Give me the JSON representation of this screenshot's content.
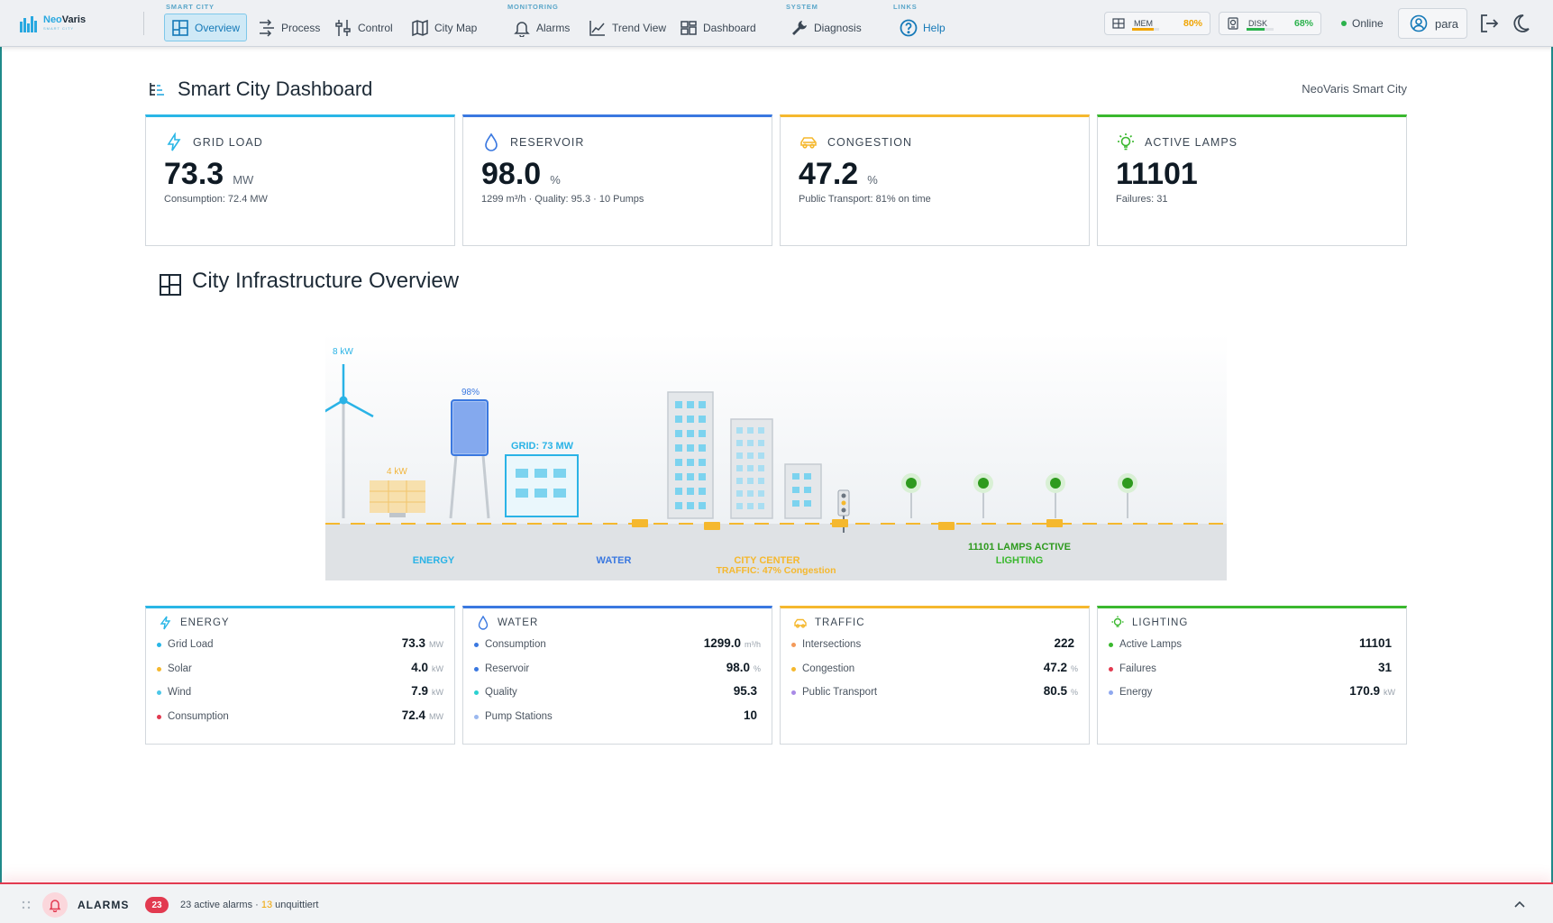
{
  "app": {
    "brand_part1": "Neo",
    "brand_part2": "Varis",
    "brand_sub": "SMART CITY"
  },
  "nav": {
    "groups": {
      "smart_city": "SMART CITY",
      "monitoring": "MONITORING",
      "system": "SYSTEM",
      "links": "LINKS"
    },
    "items": {
      "overview": "Overview",
      "process": "Process",
      "control": "Control",
      "city_map": "City Map",
      "alarms": "Alarms",
      "trend_view": "Trend View",
      "dashboard": "Dashboard",
      "diagnosis": "Diagnosis",
      "help": "Help"
    }
  },
  "system_metrics": {
    "mem": {
      "label": "MEM",
      "value": "80%",
      "fraction": 0.8,
      "color": "#f0a400"
    },
    "disk": {
      "label": "DISK",
      "value": "68%",
      "fraction": 0.68,
      "color": "#2bb24c"
    }
  },
  "status": {
    "label": "Online"
  },
  "user": {
    "name": "para"
  },
  "page": {
    "title": "Smart City Dashboard",
    "site": "NeoVaris Smart City",
    "section_title": "City Infrastructure Overview"
  },
  "kpis": {
    "grid": {
      "label": "GRID LOAD",
      "value": "73.3",
      "unit": "MW",
      "sub": "Consumption: 72.4 MW",
      "color": "#29b6e6"
    },
    "reservoir": {
      "label": "RESERVOIR",
      "value": "98.0",
      "unit": "%",
      "sub": "1299 m³/h · Quality: 95.3 · 10 Pumps",
      "color": "#3a78e0"
    },
    "congestion": {
      "label": "CONGESTION",
      "value": "47.2",
      "unit": "%",
      "sub": "Public Transport: 81% on time",
      "color": "#f5b82e"
    },
    "lamps": {
      "label": "ACTIVE LAMPS",
      "value": "11101",
      "unit": "",
      "sub": "Failures: 31",
      "color": "#3ab82e"
    }
  },
  "scene": {
    "wind_label": "8 kW",
    "solar_label": "4 kW",
    "tower_label": "98%",
    "grid_label": "GRID: 73 MW",
    "zone_energy": "ENERGY",
    "zone_water": "WATER",
    "zone_city": "CITY CENTER",
    "zone_traffic": "TRAFFIC: 47% Congestion",
    "zone_lamps": "11101 LAMPS ACTIVE",
    "zone_lighting": "LIGHTING"
  },
  "details": {
    "energy": {
      "title": "ENERGY",
      "rows": [
        {
          "label": "Grid Load",
          "value": "73.3",
          "unit": "MW",
          "dot": "#29b6e6"
        },
        {
          "label": "Solar",
          "value": "4.0",
          "unit": "kW",
          "dot": "#f5b82e"
        },
        {
          "label": "Wind",
          "value": "7.9",
          "unit": "kW",
          "dot": "#4cc7e8"
        },
        {
          "label": "Consumption",
          "value": "72.4",
          "unit": "MW",
          "dot": "#e23a50"
        }
      ]
    },
    "water": {
      "title": "WATER",
      "rows": [
        {
          "label": "Consumption",
          "value": "1299.0",
          "unit": "m³/h",
          "dot": "#3a78e0"
        },
        {
          "label": "Reservoir",
          "value": "98.0",
          "unit": "%",
          "dot": "#3a78e0"
        },
        {
          "label": "Quality",
          "value": "95.3",
          "unit": "",
          "dot": "#2bd0d0"
        },
        {
          "label": "Pump Stations",
          "value": "10",
          "unit": "",
          "dot": "#9bb8ef"
        }
      ]
    },
    "traffic": {
      "title": "TRAFFIC",
      "rows": [
        {
          "label": "Intersections",
          "value": "222",
          "unit": "",
          "dot": "#f39a5a"
        },
        {
          "label": "Congestion",
          "value": "47.2",
          "unit": "%",
          "dot": "#f5b82e"
        },
        {
          "label": "Public Transport",
          "value": "80.5",
          "unit": "%",
          "dot": "#a98ae6"
        }
      ]
    },
    "lighting": {
      "title": "LIGHTING",
      "rows": [
        {
          "label": "Active Lamps",
          "value": "11101",
          "unit": "",
          "dot": "#3ab82e"
        },
        {
          "label": "Failures",
          "value": "31",
          "unit": "",
          "dot": "#e23a50"
        },
        {
          "label": "Energy",
          "value": "170.9",
          "unit": "kW",
          "dot": "#8fa8ef"
        }
      ]
    }
  },
  "alarms": {
    "title": "ALARMS",
    "count": "23",
    "active_text": "23 active alarms · ",
    "unack_count": "13",
    "unack_text": " unquittiert"
  }
}
